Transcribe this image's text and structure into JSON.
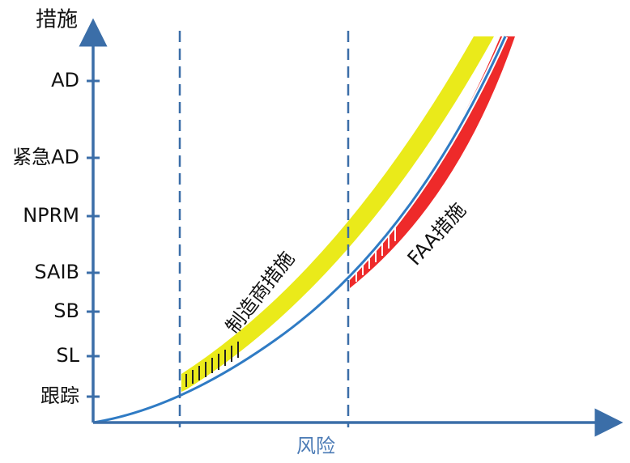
{
  "y_axis": {
    "title": "措施",
    "labels": [
      "AD",
      "紧急AD",
      "NPRM",
      "SAIB",
      "SB",
      "SL",
      "跟踪"
    ]
  },
  "x_axis": {
    "title": "风险"
  },
  "annotations": [
    "制造商措施",
    "FAA措施"
  ]
}
